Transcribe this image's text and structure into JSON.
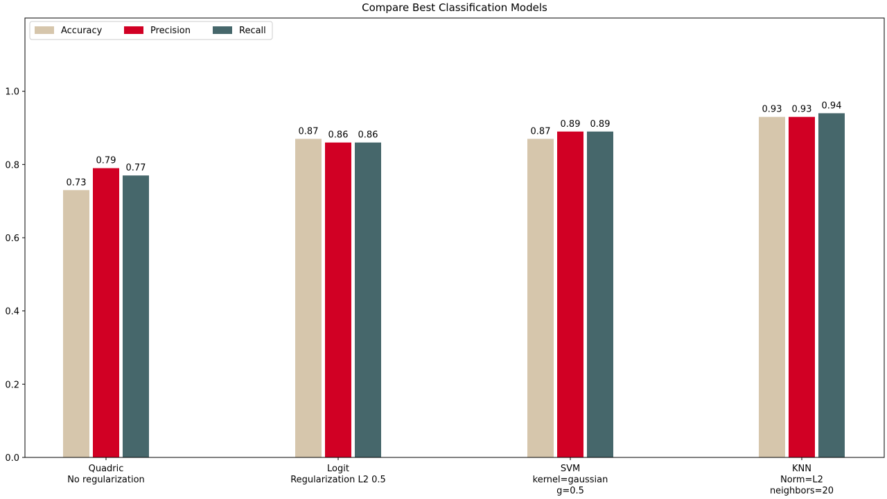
{
  "chart_data": {
    "type": "bar",
    "title": "Compare Best Classification Models",
    "xlabel": "",
    "ylabel": "",
    "categories": [
      [
        "Quadric",
        "No regularization"
      ],
      [
        "Logit",
        "Regularization L2 0.5"
      ],
      [
        "SVM",
        "kernel=gaussian",
        "g=0.5"
      ],
      [
        "KNN",
        "Norm=L2",
        "neighbors=20"
      ]
    ],
    "series": [
      {
        "name": "Accuracy",
        "color": "#d6c6ac",
        "values": [
          0.73,
          0.87,
          0.87,
          0.93
        ]
      },
      {
        "name": "Precision",
        "color": "#d10024",
        "values": [
          0.79,
          0.86,
          0.89,
          0.93
        ]
      },
      {
        "name": "Recall",
        "color": "#46676b",
        "values": [
          0.77,
          0.86,
          0.89,
          0.94
        ]
      }
    ],
    "ylim": [
      0,
      1.2
    ],
    "yticks": [
      "0.0",
      "0.2",
      "0.4",
      "0.6",
      "0.8",
      "1.0"
    ],
    "data_labels": true,
    "grid": false,
    "legend_position": "top-left"
  }
}
